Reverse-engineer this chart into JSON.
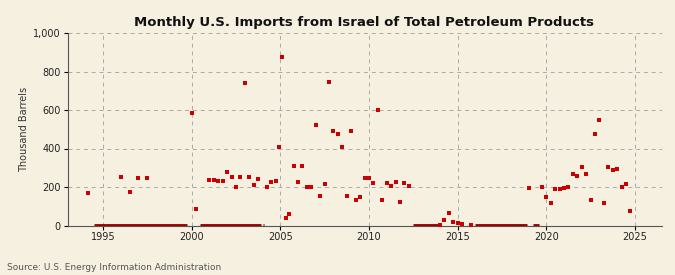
{
  "title": "Monthly U.S. Imports from Israel of Total Petroleum Products",
  "ylabel": "Thousand Barrels",
  "source_text": "Source: U.S. Energy Information Administration",
  "background_color": "#f5f0e0",
  "dot_color": "#cc0000",
  "zero_line_color": "#990000",
  "xlim": [
    1993.0,
    2026.5
  ],
  "ylim": [
    0,
    1000
  ],
  "yticks": [
    0,
    200,
    400,
    600,
    800,
    1000
  ],
  "xticks": [
    1995,
    2000,
    2005,
    2010,
    2015,
    2020,
    2025
  ],
  "data_points": [
    [
      1994.17,
      170
    ],
    [
      1996.0,
      250
    ],
    [
      1996.5,
      175
    ],
    [
      1997.0,
      245
    ],
    [
      1997.5,
      245
    ],
    [
      2000.0,
      585
    ],
    [
      2000.25,
      85
    ],
    [
      2001.0,
      235
    ],
    [
      2001.25,
      235
    ],
    [
      2001.5,
      230
    ],
    [
      2001.75,
      230
    ],
    [
      2002.0,
      280
    ],
    [
      2002.25,
      250
    ],
    [
      2002.5,
      200
    ],
    [
      2002.75,
      250
    ],
    [
      2003.0,
      740
    ],
    [
      2003.25,
      250
    ],
    [
      2003.5,
      210
    ],
    [
      2003.75,
      240
    ],
    [
      2004.25,
      200
    ],
    [
      2004.5,
      225
    ],
    [
      2004.75,
      230
    ],
    [
      2004.92,
      410
    ],
    [
      2005.08,
      875
    ],
    [
      2005.33,
      40
    ],
    [
      2005.5,
      60
    ],
    [
      2005.75,
      310
    ],
    [
      2006.0,
      225
    ],
    [
      2006.25,
      310
    ],
    [
      2006.5,
      200
    ],
    [
      2006.75,
      200
    ],
    [
      2007.0,
      520
    ],
    [
      2007.25,
      155
    ],
    [
      2007.5,
      215
    ],
    [
      2007.75,
      745
    ],
    [
      2008.0,
      490
    ],
    [
      2008.25,
      475
    ],
    [
      2008.5,
      410
    ],
    [
      2008.75,
      155
    ],
    [
      2009.0,
      490
    ],
    [
      2009.25,
      130
    ],
    [
      2009.5,
      150
    ],
    [
      2009.75,
      245
    ],
    [
      2010.0,
      245
    ],
    [
      2010.25,
      220
    ],
    [
      2010.5,
      600
    ],
    [
      2010.75,
      130
    ],
    [
      2011.0,
      220
    ],
    [
      2011.25,
      205
    ],
    [
      2011.5,
      225
    ],
    [
      2011.75,
      120
    ],
    [
      2012.0,
      220
    ],
    [
      2012.25,
      205
    ],
    [
      2014.0,
      5
    ],
    [
      2014.25,
      30
    ],
    [
      2014.5,
      65
    ],
    [
      2014.75,
      20
    ],
    [
      2015.0,
      15
    ],
    [
      2015.25,
      10
    ],
    [
      2015.75,
      5
    ],
    [
      2019.0,
      195
    ],
    [
      2019.75,
      200
    ],
    [
      2020.0,
      150
    ],
    [
      2020.25,
      115
    ],
    [
      2020.5,
      190
    ],
    [
      2020.75,
      190
    ],
    [
      2021.0,
      195
    ],
    [
      2021.25,
      200
    ],
    [
      2021.5,
      265
    ],
    [
      2021.75,
      255
    ],
    [
      2022.0,
      305
    ],
    [
      2022.25,
      265
    ],
    [
      2022.5,
      130
    ],
    [
      2022.75,
      475
    ],
    [
      2023.0,
      550
    ],
    [
      2023.25,
      115
    ],
    [
      2023.5,
      305
    ],
    [
      2023.75,
      290
    ],
    [
      2024.0,
      295
    ],
    [
      2024.25,
      200
    ],
    [
      2024.5,
      215
    ],
    [
      2024.75,
      75
    ]
  ],
  "zero_line_segments": [
    [
      1994.5,
      1999.75
    ],
    [
      2000.5,
      2003.9
    ],
    [
      2004.0,
      2004.1
    ],
    [
      2012.5,
      2013.9
    ],
    [
      2016.0,
      2018.9
    ],
    [
      2019.25,
      2019.6
    ]
  ],
  "zero_dots": [
    [
      2014.0,
      5
    ],
    [
      2014.25,
      30
    ],
    [
      2014.5,
      65
    ],
    [
      2014.75,
      20
    ],
    [
      2015.0,
      15
    ],
    [
      2015.25,
      10
    ],
    [
      2015.75,
      5
    ],
    [
      2018.5,
      5
    ],
    [
      2019.0,
      10
    ],
    [
      2019.75,
      10
    ]
  ]
}
